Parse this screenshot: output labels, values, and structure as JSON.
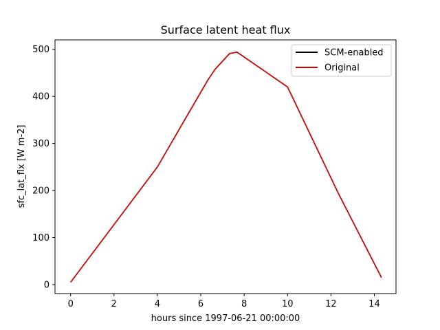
{
  "chart_data": {
    "type": "line",
    "title": "Surface latent heat flux",
    "xlabel": "hours since 1997-06-21 00:00:00",
    "ylabel": "sfc_lat_flx [W m-2]",
    "xlim": [
      -0.72,
      15.0
    ],
    "ylim": [
      -19,
      520
    ],
    "xticks": [
      0,
      2,
      4,
      6,
      8,
      10,
      12,
      14
    ],
    "yticks": [
      0,
      100,
      200,
      300,
      400,
      500
    ],
    "grid": false,
    "legend_position": "upper right",
    "series": [
      {
        "name": "SCM-enabled",
        "color": "#000000",
        "x": [
          0,
          4.0,
          6.33,
          6.67,
          7.33,
          7.67,
          10.0,
          12.33,
          14.33
        ],
        "y": [
          5,
          250,
          435,
          458,
          491,
          494,
          420,
          195,
          15
        ]
      },
      {
        "name": "Original",
        "color": "#dd0000",
        "x": [
          0,
          4.0,
          6.33,
          6.67,
          7.33,
          7.67,
          10.0,
          12.33,
          14.33
        ],
        "y": [
          5,
          250,
          435,
          458,
          491,
          494,
          420,
          195,
          15
        ]
      }
    ]
  }
}
